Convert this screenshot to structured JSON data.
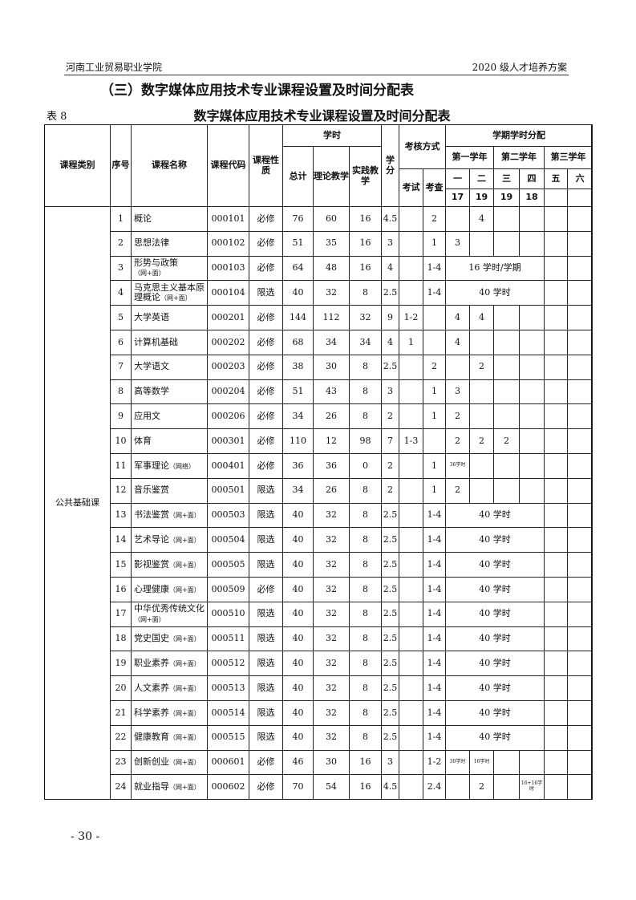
{
  "header": {
    "left": "河南工业贸易职业学院",
    "right": "2020 级人才培养方案"
  },
  "section_title": "（三）数字媒体应用技术专业课程设置及时间分配表",
  "table_no": "表 8",
  "table_title": "数字媒体应用技术专业课程设置及时间分配表",
  "columns": {
    "category": "课程类别",
    "no": "序号",
    "name": "课程名称",
    "code": "课程代码",
    "type": "课程性质",
    "hours": "学时",
    "total": "总计",
    "theory": "理论教学",
    "practice": "实践教学",
    "credit": "学分",
    "assessment": "考核方式",
    "exam": "考试",
    "check": "考查",
    "distribution": "学期学时分配",
    "years": [
      "第一学年",
      "第二学年",
      "第三学年"
    ],
    "semesters": [
      "一",
      "二",
      "三",
      "四",
      "五",
      "六"
    ],
    "weeks": [
      "17",
      "19",
      "19",
      "18",
      "",
      ""
    ]
  },
  "category": "公共基础课",
  "rows": [
    {
      "no": "1",
      "name": "概论",
      "note": "",
      "code": "000101",
      "type": "必修",
      "total": "76",
      "theory": "60",
      "practice": "16",
      "credit": "4.5",
      "exam": "",
      "check": "2",
      "sem": [
        "",
        "4",
        "",
        "",
        "",
        ""
      ]
    },
    {
      "no": "2",
      "name": "思想法律",
      "note": "",
      "code": "000102",
      "type": "必修",
      "total": "51",
      "theory": "35",
      "practice": "16",
      "credit": "3",
      "exam": "",
      "check": "1",
      "sem": [
        "3",
        "",
        "",
        "",
        "",
        ""
      ]
    },
    {
      "no": "3",
      "name": "形势与政策",
      "note": "（网+面）",
      "code": "000103",
      "type": "必修",
      "total": "64",
      "theory": "48",
      "practice": "16",
      "credit": "4",
      "exam": "",
      "check": "1-4",
      "span": "16 学时/学期"
    },
    {
      "no": "4",
      "name": "马克思主义基本原理概论",
      "note": "（网+面）",
      "code": "000104",
      "type": "限选",
      "total": "40",
      "theory": "32",
      "practice": "8",
      "credit": "2.5",
      "exam": "",
      "check": "1-4",
      "span": "40 学时"
    },
    {
      "no": "5",
      "name": "大学英语",
      "note": "",
      "code": "000201",
      "type": "必修",
      "total": "144",
      "theory": "112",
      "practice": "32",
      "credit": "9",
      "exam": "1-2",
      "check": "",
      "sem": [
        "4",
        "4",
        "",
        "",
        "",
        ""
      ]
    },
    {
      "no": "6",
      "name": "计算机基础",
      "note": "",
      "code": "000202",
      "type": "必修",
      "total": "68",
      "theory": "34",
      "practice": "34",
      "credit": "4",
      "exam": "1",
      "check": "",
      "sem": [
        "4",
        "",
        "",
        "",
        "",
        ""
      ]
    },
    {
      "no": "7",
      "name": "大学语文",
      "note": "",
      "code": "000203",
      "type": "必修",
      "total": "38",
      "theory": "30",
      "practice": "8",
      "credit": "2.5",
      "exam": "",
      "check": "2",
      "sem": [
        "",
        "2",
        "",
        "",
        "",
        ""
      ]
    },
    {
      "no": "8",
      "name": "高等数学",
      "note": "",
      "code": "000204",
      "type": "必修",
      "total": "51",
      "theory": "43",
      "practice": "8",
      "credit": "3",
      "exam": "",
      "check": "1",
      "sem": [
        "3",
        "",
        "",
        "",
        "",
        ""
      ]
    },
    {
      "no": "9",
      "name": "应用文",
      "note": "",
      "code": "000206",
      "type": "必修",
      "total": "34",
      "theory": "26",
      "practice": "8",
      "credit": "2",
      "exam": "",
      "check": "1",
      "sem": [
        "2",
        "",
        "",
        "",
        "",
        ""
      ]
    },
    {
      "no": "10",
      "name": "体育",
      "note": "",
      "code": "000301",
      "type": "必修",
      "total": "110",
      "theory": "12",
      "practice": "98",
      "credit": "7",
      "exam": "1-3",
      "check": "",
      "sem": [
        "2",
        "2",
        "2",
        "",
        "",
        ""
      ]
    },
    {
      "no": "11",
      "name": "军事理论",
      "note": "（网络）",
      "code": "000401",
      "type": "必修",
      "total": "36",
      "theory": "36",
      "practice": "0",
      "credit": "2",
      "exam": "",
      "check": "1",
      "sem": [
        "36学时",
        "",
        "",
        "",
        "",
        ""
      ]
    },
    {
      "no": "12",
      "name": "音乐鉴赏",
      "note": "",
      "code": "000501",
      "type": "限选",
      "total": "34",
      "theory": "26",
      "practice": "8",
      "credit": "2",
      "exam": "",
      "check": "1",
      "sem": [
        "2",
        "",
        "",
        "",
        "",
        ""
      ]
    },
    {
      "no": "13",
      "name": "书法鉴赏",
      "note": "（网+面）",
      "code": "000503",
      "type": "限选",
      "total": "40",
      "theory": "32",
      "practice": "8",
      "credit": "2.5",
      "exam": "",
      "check": "1-4",
      "span": "40 学时"
    },
    {
      "no": "14",
      "name": "艺术导论",
      "note": "（网+面）",
      "code": "000504",
      "type": "限选",
      "total": "40",
      "theory": "32",
      "practice": "8",
      "credit": "2.5",
      "exam": "",
      "check": "1-4",
      "span": "40 学时"
    },
    {
      "no": "15",
      "name": "影视鉴赏",
      "note": "（网+面）",
      "code": "000505",
      "type": "限选",
      "total": "40",
      "theory": "32",
      "practice": "8",
      "credit": "2.5",
      "exam": "",
      "check": "1-4",
      "span": "40 学时"
    },
    {
      "no": "16",
      "name": "心理健康",
      "note": "（网+面）",
      "code": "000509",
      "type": "必修",
      "total": "40",
      "theory": "32",
      "practice": "8",
      "credit": "2.5",
      "exam": "",
      "check": "1-4",
      "span": "40 学时"
    },
    {
      "no": "17",
      "name": "中华优秀传统文化",
      "note": "（网+面）",
      "code": "000510",
      "type": "限选",
      "total": "40",
      "theory": "32",
      "practice": "8",
      "credit": "2.5",
      "exam": "",
      "check": "1-4",
      "span": "40 学时"
    },
    {
      "no": "18",
      "name": "党史国史",
      "note": "（网+面）",
      "code": "000511",
      "type": "限选",
      "total": "40",
      "theory": "32",
      "practice": "8",
      "credit": "2.5",
      "exam": "",
      "check": "1-4",
      "span": "40 学时"
    },
    {
      "no": "19",
      "name": "职业素养",
      "note": "（网+面）",
      "code": "000512",
      "type": "限选",
      "total": "40",
      "theory": "32",
      "practice": "8",
      "credit": "2.5",
      "exam": "",
      "check": "1-4",
      "span": "40 学时"
    },
    {
      "no": "20",
      "name": "人文素养",
      "note": "（网+面）",
      "code": "000513",
      "type": "限选",
      "total": "40",
      "theory": "32",
      "practice": "8",
      "credit": "2.5",
      "exam": "",
      "check": "1-4",
      "span": "40 学时"
    },
    {
      "no": "21",
      "name": "科学素养",
      "note": "（网+面）",
      "code": "000514",
      "type": "限选",
      "total": "40",
      "theory": "32",
      "practice": "8",
      "credit": "2.5",
      "exam": "",
      "check": "1-4",
      "span": "40 学时"
    },
    {
      "no": "22",
      "name": "健康教育",
      "note": "（网+面）",
      "code": "000515",
      "type": "限选",
      "total": "40",
      "theory": "32",
      "practice": "8",
      "credit": "2.5",
      "exam": "",
      "check": "1-4",
      "span": "40 学时"
    },
    {
      "no": "23",
      "name": "创新创业",
      "note": "（网+面）",
      "code": "000601",
      "type": "必修",
      "total": "46",
      "theory": "30",
      "practice": "16",
      "credit": "3",
      "exam": "",
      "check": "1-2",
      "sem": [
        "30学时",
        "16学时",
        "",
        "",
        "",
        ""
      ]
    },
    {
      "no": "24",
      "name": "就业指导",
      "note": "（网+面）",
      "code": "000602",
      "type": "必修",
      "total": "70",
      "theory": "54",
      "practice": "16",
      "credit": "4.5",
      "exam": "",
      "check": "2.4",
      "sem": [
        "",
        "2",
        "",
        "16+16学时",
        "",
        ""
      ]
    }
  ],
  "page_number": "- 30 -"
}
